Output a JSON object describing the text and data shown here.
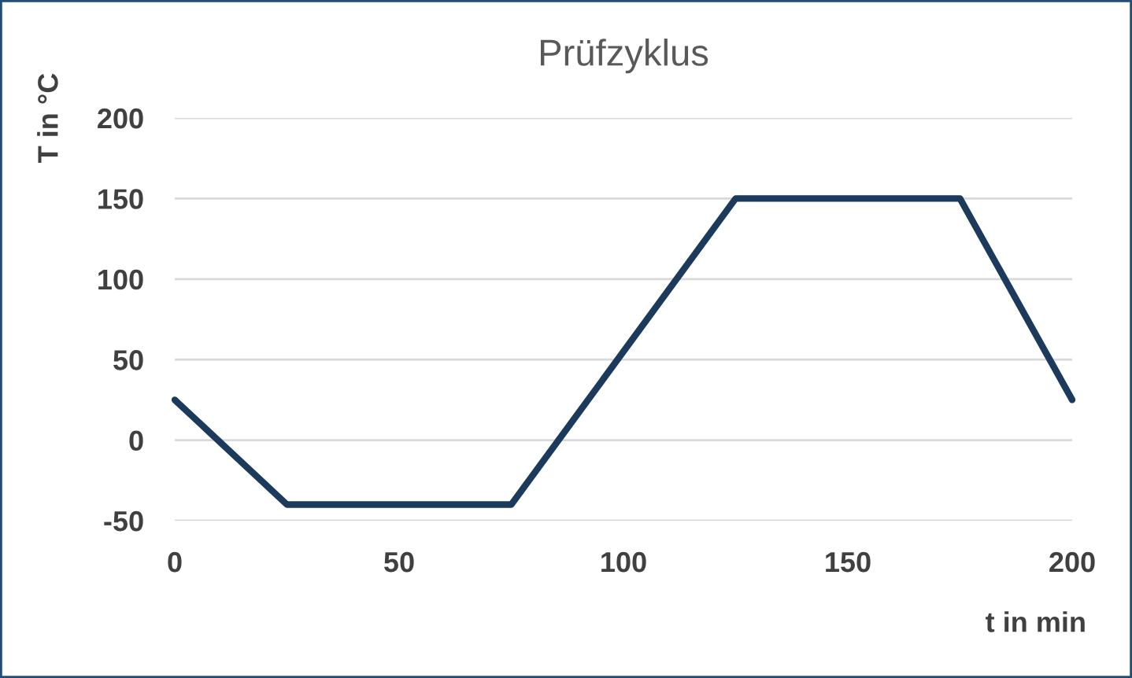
{
  "chart_data": {
    "type": "line",
    "title": "Prüfzyklus",
    "xlabel": "t in min",
    "ylabel": "T in °C",
    "x": [
      0,
      25,
      75,
      125,
      175,
      200
    ],
    "series": [
      {
        "color": "#1b3a5c",
        "values": [
          25,
          -40,
          -40,
          150,
          150,
          25
        ]
      }
    ],
    "xlim": [
      0,
      200
    ],
    "xticks": [
      0,
      50,
      100,
      150,
      200
    ],
    "ylim": [
      -50,
      200
    ],
    "yticks": [
      -50,
      0,
      50,
      100,
      150,
      200
    ],
    "grid": "y",
    "marker": "none",
    "line_style": "solid"
  }
}
